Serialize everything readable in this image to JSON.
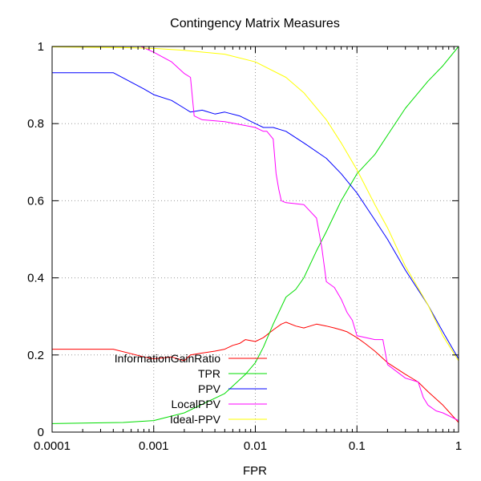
{
  "chart_data": {
    "type": "line",
    "title": "Contingency Matrix Measures",
    "xlabel": "FPR",
    "ylabel": "",
    "xscale": "log",
    "xlim": [
      0.0001,
      1
    ],
    "ylim": [
      0,
      1
    ],
    "grid": true,
    "legend_position": "bottom-left",
    "xticks": [
      {
        "value": 0.0001,
        "label": "0.0001"
      },
      {
        "value": 0.001,
        "label": "0.001"
      },
      {
        "value": 0.01,
        "label": "0.01"
      },
      {
        "value": 0.1,
        "label": "0.1"
      },
      {
        "value": 1,
        "label": "1"
      }
    ],
    "yticks": [
      {
        "value": 0,
        "label": "0"
      },
      {
        "value": 0.2,
        "label": "0.2"
      },
      {
        "value": 0.4,
        "label": "0.4"
      },
      {
        "value": 0.6,
        "label": "0.6"
      },
      {
        "value": 0.8,
        "label": "0.8"
      },
      {
        "value": 1,
        "label": "1"
      }
    ],
    "series": [
      {
        "name": "InformationGainRatio",
        "color": "#ff0000",
        "x": [
          0.0001,
          0.0004,
          0.0008,
          0.001,
          0.0015,
          0.002,
          0.0023,
          0.003,
          0.004,
          0.005,
          0.006,
          0.007,
          0.008,
          0.01,
          0.012,
          0.015,
          0.018,
          0.02,
          0.025,
          0.03,
          0.04,
          0.05,
          0.06,
          0.07,
          0.08,
          0.1,
          0.12,
          0.15,
          0.2,
          0.3,
          0.4,
          0.5,
          0.7,
          1
        ],
        "y": [
          0.215,
          0.215,
          0.195,
          0.19,
          0.195,
          0.185,
          0.2,
          0.205,
          0.21,
          0.215,
          0.225,
          0.23,
          0.24,
          0.235,
          0.245,
          0.265,
          0.28,
          0.285,
          0.275,
          0.27,
          0.28,
          0.275,
          0.27,
          0.265,
          0.26,
          0.245,
          0.23,
          0.21,
          0.18,
          0.15,
          0.13,
          0.105,
          0.07,
          0.025
        ]
      },
      {
        "name": "TPR",
        "color": "#00dd00",
        "x": [
          0.0001,
          0.0005,
          0.001,
          0.002,
          0.005,
          0.008,
          0.01,
          0.012,
          0.015,
          0.02,
          0.025,
          0.03,
          0.04,
          0.05,
          0.07,
          0.1,
          0.15,
          0.2,
          0.3,
          0.5,
          0.7,
          1
        ],
        "y": [
          0.022,
          0.025,
          0.03,
          0.05,
          0.1,
          0.15,
          0.18,
          0.22,
          0.28,
          0.35,
          0.37,
          0.4,
          0.47,
          0.52,
          0.6,
          0.67,
          0.72,
          0.77,
          0.84,
          0.91,
          0.95,
          1.0
        ]
      },
      {
        "name": "PPV",
        "color": "#0000ff",
        "x": [
          0.0001,
          0.0004,
          0.0008,
          0.001,
          0.0015,
          0.002,
          0.0023,
          0.003,
          0.004,
          0.005,
          0.007,
          0.01,
          0.012,
          0.015,
          0.02,
          0.03,
          0.05,
          0.07,
          0.1,
          0.15,
          0.2,
          0.3,
          0.5,
          0.7,
          1
        ],
        "y": [
          0.932,
          0.932,
          0.89,
          0.875,
          0.86,
          0.84,
          0.83,
          0.835,
          0.825,
          0.83,
          0.82,
          0.8,
          0.79,
          0.79,
          0.78,
          0.75,
          0.71,
          0.67,
          0.62,
          0.55,
          0.5,
          0.42,
          0.33,
          0.26,
          0.19
        ]
      },
      {
        "name": "LocalPPV",
        "color": "#ff00ff",
        "x": [
          0.00075,
          0.001,
          0.0015,
          0.002,
          0.0023,
          0.0025,
          0.003,
          0.005,
          0.008,
          0.01,
          0.012,
          0.013,
          0.015,
          0.016,
          0.017,
          0.018,
          0.02,
          0.03,
          0.04,
          0.045,
          0.05,
          0.06,
          0.07,
          0.08,
          0.09,
          0.1,
          0.15,
          0.18,
          0.2,
          0.3,
          0.4,
          0.45,
          0.5,
          0.6,
          0.7,
          1
        ],
        "y": [
          1.0,
          0.985,
          0.96,
          0.93,
          0.92,
          0.82,
          0.81,
          0.805,
          0.795,
          0.79,
          0.78,
          0.78,
          0.76,
          0.67,
          0.63,
          0.6,
          0.595,
          0.59,
          0.555,
          0.48,
          0.39,
          0.375,
          0.345,
          0.31,
          0.29,
          0.25,
          0.24,
          0.24,
          0.175,
          0.14,
          0.13,
          0.09,
          0.07,
          0.055,
          0.05,
          0.03
        ]
      },
      {
        "name": "Ideal-PPV",
        "color": "#ffff00",
        "x": [
          0.0001,
          0.0005,
          0.001,
          0.002,
          0.005,
          0.01,
          0.02,
          0.03,
          0.05,
          0.07,
          0.1,
          0.15,
          0.2,
          0.3,
          0.5,
          0.7,
          1
        ],
        "y": [
          0.999,
          0.997,
          0.995,
          0.99,
          0.98,
          0.96,
          0.92,
          0.88,
          0.81,
          0.75,
          0.68,
          0.59,
          0.53,
          0.43,
          0.33,
          0.25,
          0.185
        ]
      }
    ]
  }
}
